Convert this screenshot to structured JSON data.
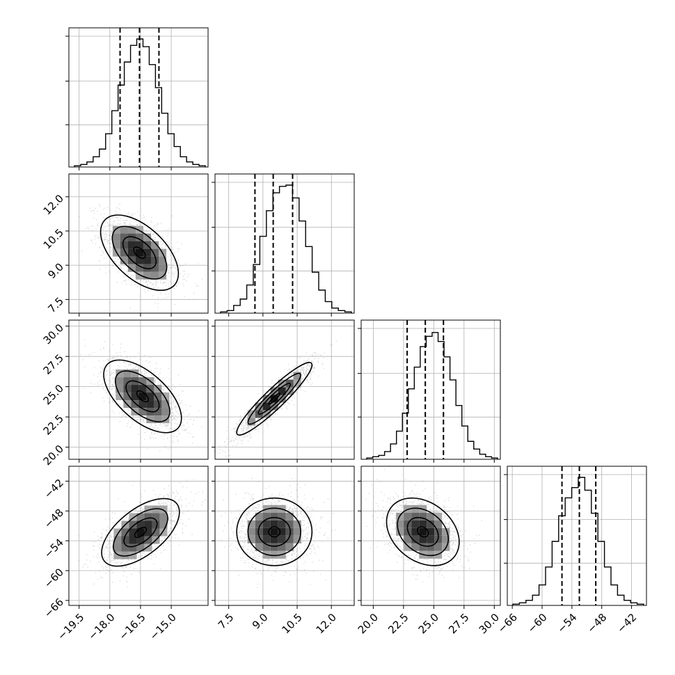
{
  "chart_data": {
    "type": "corner",
    "grid": true,
    "variables": [
      {
        "range": [
          -20.0,
          -13.2
        ],
        "ticks": [
          -19.5,
          -18.0,
          -16.5,
          -15.0
        ],
        "tick_labels": [
          "−19.5",
          "−18.0",
          "−16.5",
          "−15.0"
        ],
        "quantiles": [
          -17.5,
          -16.55,
          -15.6
        ],
        "histogram": [
          1,
          2,
          4,
          8,
          14,
          26,
          44,
          64,
          82,
          95,
          100,
          94,
          80,
          62,
          42,
          26,
          16,
          8,
          4,
          2,
          1
        ],
        "histogram_edges_note": ""
      },
      {
        "range": [
          6.9,
          13.0
        ],
        "ticks": [
          7.5,
          9.0,
          10.5,
          12.0
        ],
        "tick_labels": [
          "7.5",
          "9.0",
          "10.5",
          "12.0"
        ],
        "quantiles": [
          8.65,
          9.45,
          10.3
        ],
        "histogram": [
          1,
          2,
          6,
          11,
          22,
          38,
          60,
          80,
          94,
          99,
          100,
          90,
          72,
          52,
          32,
          18,
          9,
          4,
          2,
          1
        ]
      },
      {
        "range": [
          19.0,
          30.5
        ],
        "ticks": [
          20.0,
          22.5,
          25.0,
          27.5,
          30.0
        ],
        "tick_labels": [
          "20.0",
          "22.5",
          "25.0",
          "27.5",
          "30.0"
        ],
        "quantiles": [
          22.8,
          24.3,
          25.8
        ],
        "histogram": [
          1,
          2,
          3,
          6,
          12,
          22,
          36,
          55,
          72,
          88,
          96,
          99,
          92,
          80,
          62,
          42,
          26,
          14,
          8,
          4,
          2,
          1
        ]
      },
      {
        "range": [
          -67.0,
          -39.0
        ],
        "ticks": [
          -66,
          -60,
          -54,
          -48,
          -42
        ],
        "tick_labels": [
          "−66",
          "−60",
          "−54",
          "−48",
          "−42"
        ],
        "quantiles": [
          -56.0,
          -52.5,
          -49.2
        ],
        "histogram": [
          1,
          2,
          4,
          8,
          16,
          30,
          50,
          70,
          84,
          92,
          100,
          90,
          72,
          50,
          30,
          16,
          8,
          4,
          2,
          1
        ]
      }
    ],
    "joint": [
      {
        "row": 1,
        "col": 0,
        "center": [
          -16.55,
          9.55
        ],
        "rho": -0.55
      },
      {
        "row": 2,
        "col": 0,
        "center": [
          -16.4,
          24.2
        ],
        "rho": -0.6
      },
      {
        "row": 2,
        "col": 1,
        "center": [
          9.5,
          24.0
        ],
        "rho": 0.93
      },
      {
        "row": 3,
        "col": 0,
        "center": [
          -16.5,
          -52.3
        ],
        "rho": 0.6
      },
      {
        "row": 3,
        "col": 1,
        "center": [
          9.5,
          -52.2
        ],
        "rho": 0.0
      },
      {
        "row": 3,
        "col": 2,
        "center": [
          24.1,
          -52.2
        ],
        "rho": -0.3
      }
    ],
    "colors": {
      "line": "#000000",
      "grid": "#b0b0b0",
      "scatter": "#7f7f7f",
      "density_low": "#f2f2f2",
      "density_high": "#000000"
    }
  }
}
